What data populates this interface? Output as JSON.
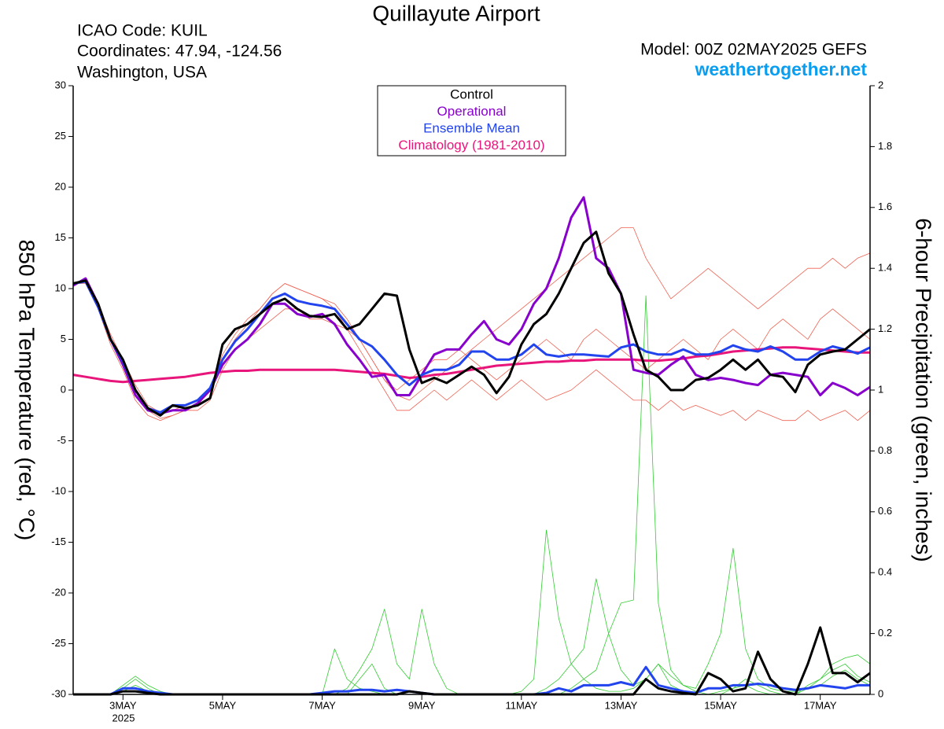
{
  "chart_data": {
    "type": "line",
    "title": "Quillayute Airport",
    "info_left": [
      "ICAO Code: KUIL",
      "Coordinates: 47.94, -124.56",
      "Washington, USA"
    ],
    "model": "Model: 00Z 02MAY2025 GEFS",
    "site": "weathertogether.net",
    "ylabel": "850 hPa Temperature (red, °C)",
    "y2label": "6-hour Precipitation (green, inches)",
    "x_year_label": "2025",
    "xlim": [
      2,
      18
    ],
    "xticks": [
      {
        "value": 3,
        "label": "3MAY"
      },
      {
        "value": 5,
        "label": "5MAY"
      },
      {
        "value": 7,
        "label": "7MAY"
      },
      {
        "value": 9,
        "label": "9MAY"
      },
      {
        "value": 11,
        "label": "11MAY"
      },
      {
        "value": 13,
        "label": "13MAY"
      },
      {
        "value": 15,
        "label": "15MAY"
      },
      {
        "value": 17,
        "label": "17MAY"
      }
    ],
    "ylim": [
      -30,
      30
    ],
    "yticks": [
      -30,
      -25,
      -20,
      -15,
      -10,
      -5,
      0,
      5,
      10,
      15,
      20,
      25,
      30
    ],
    "y2lim": [
      0,
      2
    ],
    "y2ticks": [
      0,
      0.2,
      0.4,
      0.6,
      0.8,
      1,
      1.2,
      1.4,
      1.6,
      1.8,
      2
    ],
    "x": [
      2,
      2.25,
      2.5,
      2.75,
      3,
      3.25,
      3.5,
      3.75,
      4,
      4.25,
      4.5,
      4.75,
      5,
      5.25,
      5.5,
      5.75,
      6,
      6.25,
      6.5,
      6.75,
      7,
      7.25,
      7.5,
      7.75,
      8,
      8.25,
      8.5,
      8.75,
      9,
      9.25,
      9.5,
      9.75,
      10,
      10.25,
      10.5,
      10.75,
      11,
      11.25,
      11.5,
      11.75,
      12,
      12.25,
      12.5,
      12.75,
      13,
      13.25,
      13.5,
      13.75,
      14,
      14.25,
      14.5,
      14.75,
      15,
      15.25,
      15.5,
      15.75,
      16,
      16.25,
      16.5,
      16.75,
      17,
      17.25,
      17.5,
      17.75,
      18
    ],
    "members": [
      {
        "color": "#f06050",
        "values": [
          10.5,
          10.8,
          8,
          4.5,
          2,
          -1,
          -2.5,
          -3,
          -2.5,
          -2,
          -1.5,
          0,
          3,
          5,
          6.5,
          8,
          9.5,
          10.5,
          10,
          9.5,
          9,
          8.5,
          7,
          5,
          3,
          1,
          -0.5,
          -1,
          0,
          1,
          2,
          3,
          4,
          5,
          6,
          7,
          8,
          9,
          10,
          11,
          12,
          13,
          14,
          15,
          16,
          16,
          13,
          11,
          9,
          10,
          11,
          12,
          11,
          10,
          9,
          8,
          9,
          10,
          11,
          12,
          12,
          13,
          12,
          13,
          13.5
        ]
      },
      {
        "color": "#f06050",
        "values": [
          10.5,
          10.5,
          8,
          5,
          3,
          0,
          -2,
          -2.8,
          -2.5,
          -2,
          -2,
          -1,
          2,
          4,
          5,
          6,
          7,
          8,
          8,
          7,
          7,
          6.5,
          6,
          4,
          2,
          0,
          -2,
          -2,
          -1,
          0,
          -1,
          0,
          1,
          0,
          -1,
          0,
          1,
          0,
          -1,
          -0.5,
          0,
          1,
          2,
          1,
          0,
          -1,
          -1,
          -2,
          -1,
          -2,
          -1.5,
          -2,
          -2.5,
          -2,
          -3,
          -2,
          -2.5,
          -3,
          -3,
          -2,
          -3,
          -2.5,
          -2,
          -3,
          -2
        ]
      },
      {
        "color": "#f06050",
        "values": [
          10.3,
          10.8,
          8.5,
          5.5,
          3,
          0.5,
          -1.5,
          -2.2,
          -2,
          -1.5,
          -1,
          0,
          3.5,
          5.5,
          7,
          8,
          9.5,
          10.5,
          10,
          9.5,
          9,
          8,
          6,
          5,
          3,
          1,
          0,
          1,
          2,
          3,
          3,
          4,
          3,
          2,
          1,
          2,
          3,
          4,
          5,
          4,
          3,
          5,
          6,
          5,
          4,
          3,
          2,
          3,
          4,
          5,
          4,
          3,
          5,
          6,
          5,
          4,
          6,
          7,
          6,
          5,
          7,
          8,
          7,
          6,
          5
        ]
      }
    ],
    "precip_members": [
      {
        "color": "#33cc33",
        "axis": "y2",
        "values": [
          0,
          0,
          0,
          0,
          0.02,
          0.05,
          0.02,
          0,
          0,
          0,
          0,
          0,
          0,
          0,
          0,
          0,
          0,
          0,
          0,
          0,
          0,
          0,
          0,
          0.05,
          0.1,
          0.02,
          0,
          0,
          0,
          0,
          0,
          0,
          0,
          0,
          0,
          0,
          0,
          0,
          0,
          0,
          0.02,
          0.05,
          0.08,
          0.2,
          0.3,
          0.31,
          1.31,
          0.3,
          0.08,
          0.03,
          0.01,
          0,
          0,
          0.02,
          0.05,
          0.03,
          0.01,
          0,
          0,
          0.02,
          0.05,
          0.08,
          0.1,
          0.06,
          0.04
        ]
      },
      {
        "color": "#33cc33",
        "axis": "y2",
        "values": [
          0,
          0,
          0,
          0,
          0.03,
          0.06,
          0.03,
          0.01,
          0,
          0,
          0,
          0,
          0,
          0,
          0,
          0,
          0,
          0,
          0,
          0,
          0,
          0,
          0.02,
          0.08,
          0.15,
          0.28,
          0.1,
          0.05,
          0.28,
          0.1,
          0.02,
          0,
          0,
          0,
          0,
          0,
          0.01,
          0.05,
          0.54,
          0.25,
          0.1,
          0.05,
          0.02,
          0.01,
          0.01,
          0.02,
          0.05,
          0.1,
          0.03,
          0.01,
          0,
          0,
          0.01,
          0.02,
          0.03,
          0.01,
          0,
          0,
          0,
          0.03,
          0.05,
          0.1,
          0.12,
          0.13,
          0.1
        ]
      },
      {
        "color": "#33cc33",
        "axis": "y2",
        "values": [
          0,
          0,
          0,
          0,
          0.01,
          0.03,
          0.01,
          0,
          0,
          0,
          0,
          0,
          0,
          0,
          0,
          0,
          0,
          0,
          0,
          0,
          0,
          0.15,
          0.05,
          0.02,
          0.01,
          0,
          0,
          0,
          0,
          0,
          0,
          0,
          0,
          0,
          0,
          0,
          0,
          0,
          0.02,
          0.05,
          0.1,
          0.15,
          0.38,
          0.2,
          0.08,
          0.03,
          0.05,
          0.1,
          0.06,
          0.03,
          0.02,
          0.1,
          0.2,
          0.48,
          0.15,
          0.05,
          0.02,
          0.01,
          0.01,
          0.02,
          0.03,
          0.06,
          0.08,
          0.05,
          0.03
        ]
      }
    ],
    "series": [
      {
        "name": "Climatology (1981-2010)",
        "color": "#e8157a",
        "values": [
          1.5,
          1.3,
          1.1,
          0.9,
          0.8,
          0.9,
          1,
          1.1,
          1.2,
          1.3,
          1.5,
          1.7,
          1.8,
          1.9,
          1.9,
          2,
          2,
          2,
          2,
          2,
          2,
          2,
          1.9,
          1.8,
          1.7,
          1.6,
          1.4,
          1.2,
          1.3,
          1.5,
          1.6,
          1.8,
          2,
          2.2,
          2.4,
          2.5,
          2.6,
          2.7,
          2.8,
          2.8,
          2.9,
          2.9,
          3,
          3,
          3,
          3,
          2.9,
          2.9,
          3,
          3.1,
          3.3,
          3.4,
          3.6,
          3.8,
          3.9,
          4,
          4.1,
          4.2,
          4.2,
          4.1,
          4,
          3.9,
          3.8,
          3.7,
          3.7
        ]
      },
      {
        "name": "Operational",
        "color": "#8800cc",
        "values": [
          10.3,
          11,
          8.5,
          5,
          2.5,
          -0.5,
          -2,
          -2.3,
          -2,
          -2,
          -1.3,
          0,
          2.5,
          4,
          5,
          6.5,
          8.5,
          8.5,
          7.5,
          7.2,
          7.5,
          6.5,
          4.5,
          3,
          1.3,
          1.5,
          -0.5,
          -0.5,
          1.5,
          3.5,
          4,
          4,
          5.5,
          6.8,
          5,
          4.5,
          6,
          8.5,
          10,
          13,
          17,
          19,
          13,
          12,
          9.5,
          2,
          1.7,
          1.5,
          2.5,
          3.3,
          1.5,
          1,
          1.2,
          1,
          0.7,
          0.5,
          1.5,
          1.7,
          1.5,
          1.3,
          -0.5,
          0.7,
          0.2,
          -0.5,
          0.3
        ]
      },
      {
        "name": "Ensemble Mean",
        "color": "#2244ee",
        "values": [
          10.5,
          10.7,
          8.2,
          5,
          2.8,
          0,
          -1.8,
          -2.2,
          -1.5,
          -1.5,
          -1,
          0.2,
          3,
          4.8,
          6,
          7.5,
          9,
          9.5,
          8.8,
          8.5,
          8.3,
          8,
          6.5,
          5,
          4.3,
          3,
          1.5,
          0.5,
          1.5,
          2,
          2,
          2.5,
          3.8,
          3.8,
          3,
          3,
          3.5,
          4.5,
          3.5,
          3.3,
          3.5,
          3.5,
          3.4,
          3.3,
          4.2,
          4.5,
          3.8,
          3.5,
          3.5,
          4,
          3.5,
          3.5,
          3.8,
          4.4,
          4,
          3.8,
          4.3,
          3.8,
          3,
          3,
          3.8,
          4.3,
          4,
          3.6,
          4.2
        ]
      },
      {
        "name": "Control",
        "color": "#000000",
        "values": [
          10.5,
          10.8,
          8.5,
          5,
          3,
          0,
          -1.8,
          -2.5,
          -1.5,
          -1.8,
          -1.5,
          -0.8,
          4.5,
          6,
          6.5,
          7.5,
          8.5,
          9,
          8,
          7.3,
          7.2,
          7.5,
          6,
          6.5,
          8,
          9.5,
          9.3,
          4,
          0.7,
          1.2,
          0.7,
          1.5,
          2.3,
          1.5,
          -0.3,
          1.3,
          4.5,
          6.5,
          7.5,
          9.5,
          12,
          14.5,
          15.6,
          11.5,
          9.5,
          5.5,
          2,
          1.3,
          0,
          0,
          1,
          1.2,
          2,
          3,
          2,
          3,
          1.5,
          1.3,
          -0.2,
          2.5,
          3.5,
          3.8,
          4,
          5,
          6
        ]
      }
    ],
    "precip_series": [
      {
        "color": "#2244ee",
        "axis": "y2",
        "values": [
          0,
          0,
          0,
          0,
          0.02,
          0.02,
          0.01,
          0.005,
          0,
          0,
          0,
          0,
          0,
          0,
          0,
          0,
          0,
          0,
          0,
          0,
          0.005,
          0.01,
          0.01,
          0.015,
          0.015,
          0.01,
          0.015,
          0.01,
          0.005,
          0,
          0,
          0,
          0,
          0,
          0,
          0,
          0,
          0,
          0.005,
          0.02,
          0.01,
          0.03,
          0.03,
          0.03,
          0.04,
          0.03,
          0.09,
          0.03,
          0.02,
          0.01,
          0.005,
          0.02,
          0.02,
          0.03,
          0.03,
          0.035,
          0.03,
          0.02,
          0.015,
          0.02,
          0.03,
          0.025,
          0.02,
          0.03,
          0.03
        ]
      },
      {
        "color": "#000000",
        "axis": "y2",
        "values": [
          0,
          0,
          0,
          0,
          0.01,
          0.01,
          0.005,
          0,
          0,
          0,
          0,
          0,
          0,
          0,
          0,
          0,
          0,
          0,
          0,
          0,
          0,
          0,
          0,
          0,
          0,
          0,
          0,
          0.01,
          0.005,
          0,
          0,
          0,
          0,
          0,
          0,
          0,
          0,
          0,
          0,
          0,
          0,
          0,
          0,
          0,
          0,
          0,
          0.05,
          0.02,
          0.01,
          0.005,
          0,
          0.07,
          0.05,
          0.01,
          0.02,
          0.14,
          0.05,
          0.01,
          0,
          0.1,
          0.22,
          0.07,
          0.07,
          0.04,
          0.07
        ]
      }
    ],
    "legend_order": [
      3,
      1,
      2,
      0
    ]
  }
}
